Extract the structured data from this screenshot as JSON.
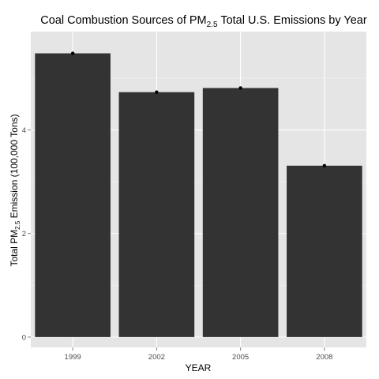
{
  "chart_data": {
    "type": "bar",
    "title": {
      "prefix": "Coal Combustion Sources of PM",
      "subscript": "2.5",
      "suffix": " Total U.S. Emissions by Year"
    },
    "xlabel": "YEAR",
    "ylabel": {
      "prefix": "Total PM",
      "subscript": "2.5",
      "suffix": " Emission (100,000 Tons)"
    },
    "categories": [
      "1999",
      "2002",
      "2005",
      "2008"
    ],
    "values": [
      5.48,
      4.73,
      4.81,
      3.31
    ],
    "point_markers": true,
    "ylim": [
      -0.2,
      5.9
    ],
    "yticks": [
      0,
      2,
      4
    ],
    "grid": true,
    "background": "#e5e5e5",
    "bar_color": "#333333",
    "grid_color": "#ffffff",
    "marker_color": "#000000"
  }
}
